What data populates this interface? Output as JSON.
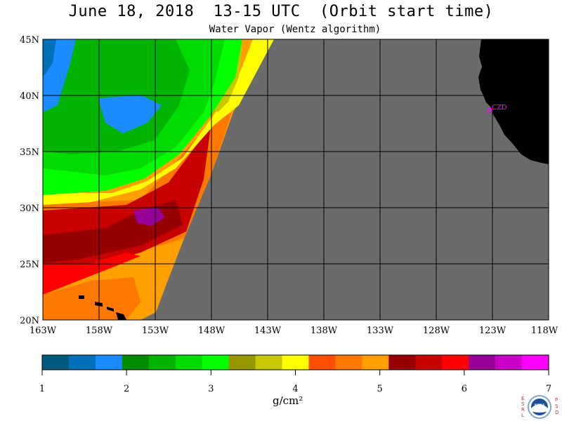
{
  "header": {
    "title": "June 18, 2018  13-15 UTC  (Orbit start time)",
    "subtitle": "Water Vapor (Wentz algorithm)"
  },
  "map": {
    "lat_range": [
      20,
      45
    ],
    "lon_range": [
      -163,
      -118
    ],
    "lat_ticks": [
      {
        "value": 20,
        "label": "20N"
      },
      {
        "value": 25,
        "label": "25N"
      },
      {
        "value": 30,
        "label": "30N"
      },
      {
        "value": 35,
        "label": "35N"
      },
      {
        "value": 40,
        "label": "40N"
      },
      {
        "value": 45,
        "label": "45N"
      }
    ],
    "lon_ticks": [
      {
        "value": -163,
        "label": "163W"
      },
      {
        "value": -158,
        "label": "158W"
      },
      {
        "value": -153,
        "label": "153W"
      },
      {
        "value": -148,
        "label": "148W"
      },
      {
        "value": -143,
        "label": "143W"
      },
      {
        "value": -138,
        "label": "138W"
      },
      {
        "value": -133,
        "label": "133W"
      },
      {
        "value": -128,
        "label": "128W"
      },
      {
        "value": -123,
        "label": "123W"
      },
      {
        "value": -118,
        "label": "118W"
      }
    ],
    "station": {
      "label": "CZD",
      "color": "#ff00ff"
    },
    "no_data_color": "#6b6b6b",
    "land_color": "#000000",
    "grid_color": "#000000"
  },
  "colorbar": {
    "colors": [
      "#005a7f",
      "#0070b8",
      "#1a8cff",
      "#008c00",
      "#00b400",
      "#00dc00",
      "#00ff00",
      "#969600",
      "#c8c800",
      "#ffff00",
      "#ff5000",
      "#ff7800",
      "#ffa000",
      "#960000",
      "#c80000",
      "#ff0000",
      "#960096",
      "#c800c8",
      "#ff00ff"
    ],
    "ticks": [
      {
        "value": 1,
        "label": "1"
      },
      {
        "value": 2,
        "label": "2"
      },
      {
        "value": 3,
        "label": "3"
      },
      {
        "value": 4,
        "label": "4"
      },
      {
        "value": 5,
        "label": "5"
      },
      {
        "value": 6,
        "label": "6"
      },
      {
        "value": 7,
        "label": "7"
      }
    ],
    "units": "g/cm²"
  },
  "logo": {
    "left_letters": "ESRL",
    "right_letters": "PSD",
    "emblem": "NOAA"
  }
}
